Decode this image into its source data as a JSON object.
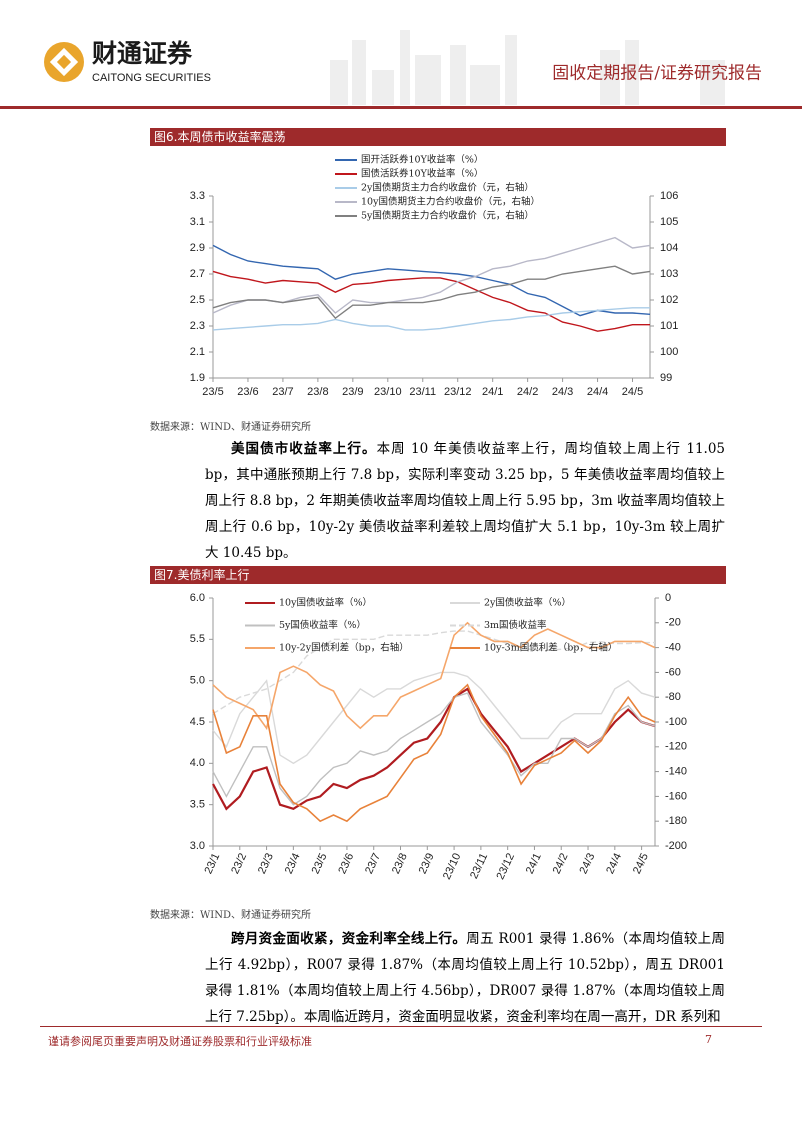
{
  "header": {
    "company_cn": "财通证券",
    "company_en": "CAITONG SECURITIES",
    "report_type": "固收定期报告/证券研究报告"
  },
  "chart_data": [
    {
      "type": "line",
      "title": "图6.本周债市收益率震荡",
      "categories": [
        "23/5",
        null,
        "23/6",
        null,
        "23/7",
        null,
        "23/8",
        null,
        "23/9",
        null,
        "23/10",
        null,
        "23/11",
        null,
        "23/12",
        null,
        "24/1",
        null,
        "24/2",
        null,
        "24/3",
        null,
        "24/4",
        null,
        "24/5",
        null
      ],
      "ylim": [
        1.9,
        3.3
      ],
      "yticks": [
        1.9,
        2.1,
        2.3,
        2.5,
        2.7,
        2.9,
        3.1,
        3.3
      ],
      "y2lim": [
        99,
        106
      ],
      "y2ticks": [
        99,
        100,
        101,
        102,
        103,
        104,
        105,
        106
      ],
      "series": [
        {
          "name": "国开活跃券10Y收益率（%）",
          "color": "#3366b0",
          "values": [
            2.92,
            2.85,
            2.8,
            2.78,
            2.76,
            2.75,
            2.74,
            2.66,
            2.7,
            2.72,
            2.74,
            2.73,
            2.72,
            2.71,
            2.7,
            2.68,
            2.65,
            2.62,
            2.55,
            2.52,
            2.45,
            2.38,
            2.42,
            2.4,
            2.4,
            2.39
          ]
        },
        {
          "name": "国债活跃券10Y收益率（%）",
          "color": "#c0161c",
          "values": [
            2.72,
            2.68,
            2.66,
            2.63,
            2.65,
            2.64,
            2.63,
            2.56,
            2.62,
            2.63,
            2.65,
            2.66,
            2.67,
            2.67,
            2.64,
            2.58,
            2.52,
            2.48,
            2.42,
            2.4,
            2.33,
            2.3,
            2.26,
            2.28,
            2.31,
            2.31
          ]
        },
        {
          "name": "2y国债期货主力合约收盘价（元，右轴）",
          "color": "#a9cce8",
          "axis": "y2",
          "values": [
            100.85,
            100.9,
            100.95,
            101,
            101.05,
            101.05,
            101.1,
            101.25,
            101.1,
            101,
            101,
            100.85,
            100.85,
            100.9,
            101,
            101.1,
            101.2,
            101.25,
            101.35,
            101.4,
            101.5,
            101.55,
            101.6,
            101.65,
            101.7,
            101.7
          ]
        },
        {
          "name": "10y国债期货主力合约收盘价（元，右轴）",
          "color": "#b8b8c8",
          "axis": "y2",
          "values": [
            101.5,
            101.8,
            102,
            102,
            101.9,
            102.1,
            102.2,
            101.5,
            102,
            101.9,
            101.9,
            102,
            102.1,
            102.3,
            102.7,
            102.9,
            103.2,
            103.3,
            103.5,
            103.6,
            103.8,
            104,
            104.2,
            104.4,
            104,
            104.1
          ]
        },
        {
          "name": "5y国债期货主力合约收盘价（元，右轴）",
          "color": "#808080",
          "axis": "y2",
          "values": [
            101.7,
            101.9,
            102,
            102,
            101.9,
            102,
            102.1,
            101.3,
            101.8,
            101.8,
            101.9,
            101.9,
            101.9,
            102,
            102.2,
            102.3,
            102.5,
            102.6,
            102.8,
            102.8,
            103,
            103.1,
            103.2,
            103.3,
            103,
            103.1
          ]
        }
      ]
    },
    {
      "type": "line",
      "title": "图7.美债利率上行",
      "categories": [
        "23/1",
        null,
        "23/2",
        null,
        "23/3",
        null,
        "23/4",
        null,
        "23/5",
        null,
        "23/6",
        null,
        "23/7",
        null,
        "23/8",
        null,
        "23/9",
        null,
        "23/10",
        null,
        "23/11",
        null,
        "23/12",
        null,
        "24/1",
        null,
        "24/2",
        null,
        "24/3",
        null,
        "24/4",
        null,
        "24/5",
        null
      ],
      "ylim": [
        3,
        6
      ],
      "yticks": [
        {
          "value": 3,
          "label": "3.0"
        },
        3.5,
        {
          "value": 4,
          "label": "4.0"
        },
        4.5,
        {
          "value": 5,
          "label": "5.0"
        },
        5.5,
        {
          "value": 6,
          "label": "6.0"
        }
      ],
      "y2lim": [
        -200,
        0
      ],
      "y2ticks": [
        -200,
        -180,
        -160,
        -140,
        -120,
        -100,
        -80,
        -60,
        -40,
        -20,
        0
      ],
      "series": [
        {
          "name": "10y国债收益率（%）",
          "color": "#b01c20",
          "width": 2.2,
          "values": [
            3.75,
            3.45,
            3.6,
            3.9,
            3.95,
            3.5,
            3.45,
            3.55,
            3.6,
            3.75,
            3.7,
            3.8,
            3.85,
            3.95,
            4.1,
            4.25,
            4.3,
            4.5,
            4.8,
            4.9,
            4.6,
            4.4,
            4.2,
            3.9,
            4,
            4.1,
            4.2,
            4.3,
            4.2,
            4.3,
            4.5,
            4.65,
            4.5,
            4.45
          ]
        },
        {
          "name": "2y国债收益率（%）",
          "color": "#d9d9d9",
          "values": [
            4.4,
            4.2,
            4.6,
            4.8,
            5,
            4.1,
            4,
            4.1,
            4.3,
            4.5,
            4.7,
            4.9,
            4.8,
            4.9,
            4.9,
            5,
            5.05,
            5.1,
            5.1,
            5.05,
            4.9,
            4.7,
            4.5,
            4.3,
            4.3,
            4.3,
            4.5,
            4.6,
            4.6,
            4.6,
            4.9,
            5,
            4.85,
            4.8
          ]
        },
        {
          "name": "5y国债收益率（%）",
          "color": "#c0c0c0",
          "values": [
            3.9,
            3.6,
            3.9,
            4.2,
            4.2,
            3.7,
            3.5,
            3.6,
            3.8,
            3.95,
            4,
            4.15,
            4.1,
            4.15,
            4.3,
            4.4,
            4.5,
            4.6,
            4.8,
            4.85,
            4.5,
            4.3,
            4.1,
            3.85,
            4,
            4,
            4.3,
            4.3,
            4.2,
            4.3,
            4.6,
            4.7,
            4.5,
            4.45
          ]
        },
        {
          "name": "3m国债收益率",
          "color": "#d9d9d9",
          "dashed": true,
          "values": [
            4.6,
            4.7,
            4.8,
            4.85,
            4.9,
            5,
            5.1,
            5.3,
            5.4,
            5.5,
            5.5,
            5.5,
            5.5,
            5.55,
            5.55,
            5.55,
            5.55,
            5.58,
            5.6,
            5.6,
            5.55,
            5.5,
            5.45,
            5.4,
            5.37,
            5.37,
            5.38,
            5.4,
            5.46,
            5.47,
            5.45,
            5.45,
            5.46,
            5.46
          ]
        },
        {
          "name": "10y-2y国债利差（bp，右轴）",
          "color": "#f5a66a",
          "axis": "y2",
          "width": 1.6,
          "values": [
            -70,
            -80,
            -85,
            -90,
            -105,
            -60,
            -55,
            -60,
            -70,
            -75,
            -95,
            -105,
            -95,
            -95,
            -80,
            -75,
            -70,
            -65,
            -30,
            -20,
            -30,
            -35,
            -35,
            -40,
            -30,
            -25,
            -30,
            -35,
            -40,
            -40,
            -35,
            -35,
            -35,
            -40
          ]
        },
        {
          "name": "10y-3m国债利差（bp，右轴）",
          "color": "#e8823a",
          "axis": "y2",
          "width": 1.6,
          "values": [
            -90,
            -125,
            -120,
            -95,
            -95,
            -150,
            -165,
            -170,
            -180,
            -175,
            -180,
            -170,
            -165,
            -160,
            -145,
            -130,
            -125,
            -110,
            -80,
            -70,
            -95,
            -110,
            -125,
            -150,
            -135,
            -130,
            -125,
            -115,
            -125,
            -115,
            -95,
            -80,
            -95,
            -100
          ]
        }
      ]
    }
  ],
  "sources": [
    "数据来源：WIND、财通证券研究所",
    "数据来源：WIND、财通证券研究所"
  ],
  "paragraphs": [
    {
      "lead": "美国债市收益率上行。",
      "text": "本周 10 年美债收益率上行，周均值较上周上行 11.05 bp，其中通胀预期上行 7.8 bp，实际利率变动 3.25 bp，5 年美债收益率周均值较上周上行 8.8 bp，2 年期美债收益率周均值较上周上行 5.95 bp，3m 收益率周均值较上周上行 0.6 bp，10y-2y 美债收益率利差较上周均值扩大 5.1 bp，10y-3m 较上周扩大 10.45 bp。"
    },
    {
      "lead": "跨月资金面收紧，资金利率全线上行。",
      "text": "周五 R001 录得 1.86%（本周均值较上周上行 4.92bp），R007 录得 1.87%（本周均值较上周上行 10.52bp），周五 DR001 录得 1.81%（本周均值较上周上行 4.56bp），DR007 录得 1.87%（本周均值较上周上行 7.25bp）。本周临近跨月，资金面明显收紧，资金利率均在周一高开，DR 系列和"
    }
  ],
  "footer": {
    "disclaimer": "谨请参阅尾页重要声明及财通证券股票和行业评级标准",
    "page": "7"
  }
}
